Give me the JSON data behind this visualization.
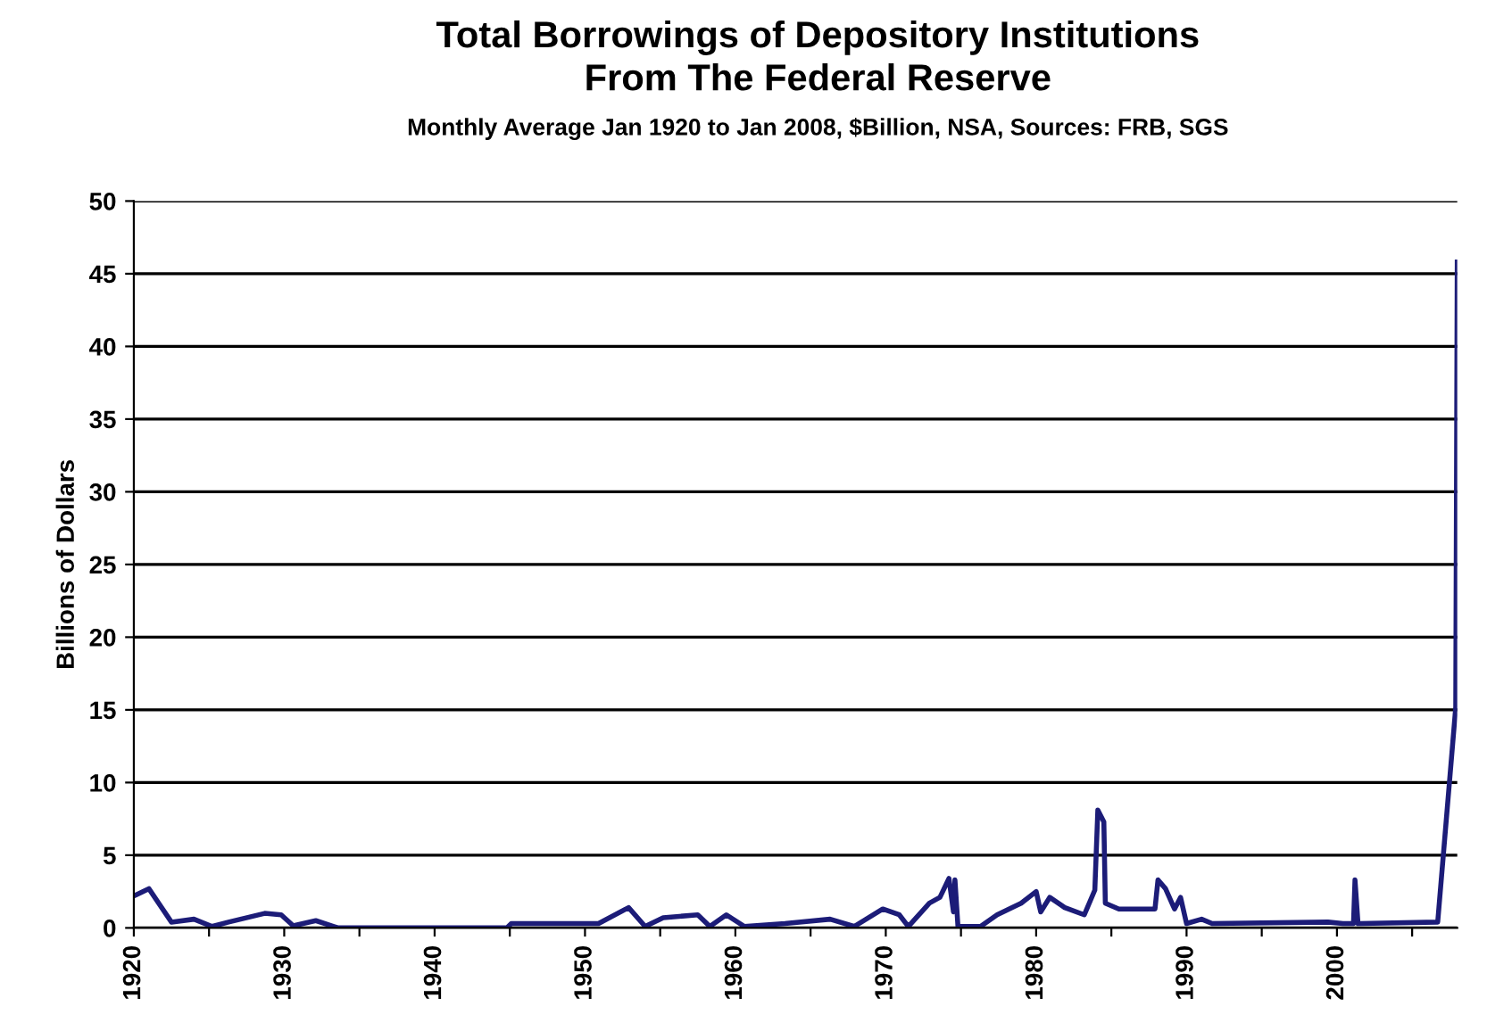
{
  "chart_data": {
    "type": "line",
    "title": "Total Borrowings of Depository Institutions\nFrom The Federal Reserve",
    "subtitle": "Monthly Average Jan 1920 to Jan 2008, $Billion, NSA, Sources: FRB, SGS",
    "ylabel": "Billions of Dollars",
    "x": [
      1920.0,
      1920.2,
      1921.0,
      1922.5,
      1924.0,
      1925.2,
      1926.3,
      1928.7,
      1929.8,
      1930.6,
      1932.1,
      1933.3,
      1933.6,
      1944.8,
      1945.1,
      1950.9,
      1952.9,
      1954.0,
      1955.2,
      1957.5,
      1958.3,
      1959.4,
      1960.6,
      1963.3,
      1966.3,
      1967.9,
      1969.8,
      1970.9,
      1971.5,
      1972.9,
      1973.6,
      1974.2,
      1974.5,
      1974.6,
      1974.8,
      1976.3,
      1977.4,
      1979.0,
      1980.0,
      1980.3,
      1980.9,
      1981.9,
      1983.2,
      1983.9,
      1984.1,
      1984.5,
      1984.6,
      1985.5,
      1987.9,
      1988.1,
      1988.6,
      1989.2,
      1989.6,
      1990.0,
      1991.0,
      1991.7,
      1999.4,
      2000.4,
      2001.1,
      2001.2,
      2001.4,
      2006.7,
      2007.9,
      2008.0
    ],
    "series": [
      {
        "color": "#1c1c78",
        "values": [
          2.2,
          2.3,
          2.7,
          0.4,
          0.6,
          0.1,
          0.4,
          1.0,
          0.9,
          0.15,
          0.5,
          0.1,
          0,
          0,
          0.3,
          0.3,
          1.4,
          0.1,
          0.7,
          0.9,
          0.1,
          0.9,
          0.1,
          0.3,
          0.6,
          0.1,
          1.3,
          0.9,
          0.1,
          1.7,
          2.1,
          3.4,
          1.1,
          3.3,
          0.1,
          0.1,
          0.9,
          1.7,
          2.5,
          1.1,
          2.1,
          1.4,
          0.9,
          2.6,
          8.1,
          7.3,
          1.7,
          1.3,
          1.3,
          3.3,
          2.7,
          1.3,
          2.1,
          0.3,
          0.6,
          0.3,
          0.4,
          0.3,
          0.3,
          3.3,
          0.3,
          0.4,
          15.2,
          45.8
        ]
      }
    ],
    "xlim": [
      1920,
      2008
    ],
    "xticks": [
      1920,
      {
        "value": 1925,
        "label": null
      },
      1930,
      {
        "value": 1935,
        "label": null
      },
      1940,
      {
        "value": 1945,
        "label": null
      },
      1950,
      {
        "value": 1955,
        "label": null
      },
      1960,
      {
        "value": 1965,
        "label": null
      },
      1970,
      {
        "value": 1975,
        "label": null
      },
      1980,
      {
        "value": 1985,
        "label": null
      },
      1990,
      {
        "value": 1995,
        "label": null
      },
      2000,
      {
        "value": 2005,
        "label": null
      }
    ],
    "ylim": [
      0,
      50
    ],
    "yticks": [
      0,
      5,
      10,
      15,
      20,
      25,
      30,
      35,
      40,
      45,
      50
    ],
    "grid": "y",
    "line_style": "solid",
    "marker": "none"
  }
}
